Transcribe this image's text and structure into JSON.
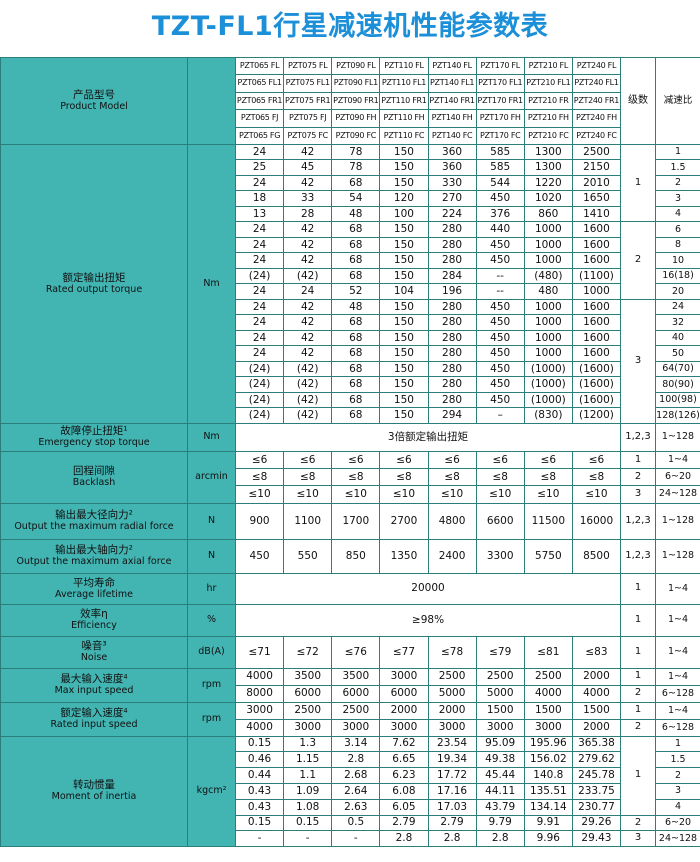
{
  "title": "TZT-FL1行星减速机性能参数表",
  "header": {
    "label_cn": "产品型号",
    "label_en": "Product Model",
    "stage": "级数",
    "ratio": "减速比",
    "models": [
      [
        "PZT065 FL",
        "PZT075 FL",
        "PZT090 FL",
        "PZT110 FL",
        "PZT140 FL",
        "PZT170 FL",
        "PZT210 FL",
        "PZT240 FL"
      ],
      [
        "PZT065 FL1",
        "PZT075 FL1",
        "PZT090 FL1",
        "PZT110 FL1",
        "PZT140 FL1",
        "PZT170 FL1",
        "PZT210 FL1",
        "PZT240 FL1"
      ],
      [
        "PZT065 FR1",
        "PZT075 FR1",
        "PZT090 FR1",
        "PZT110 FR1",
        "PZT140 FR1",
        "PZT170 FR1",
        "PZT210 FR",
        "PZT240 FR1"
      ],
      [
        "PZT065 FJ",
        "PZT075 FJ",
        "PZT090 FH",
        "PZT110 FH",
        "PZT140 FH",
        "PZT170 FH",
        "PZT210 FH",
        "PZT240 FH"
      ],
      [
        "PZT065 FG",
        "PZT075 FC",
        "PZT090 FC",
        "PZT110 FC",
        "PZT140 FC",
        "PZT170 FC",
        "PZT210 FC",
        "PZT240 FC"
      ]
    ]
  },
  "sections": [
    {
      "label_cn": "额定输出扭矩",
      "label_en": "Rated output torque",
      "unit": "Nm",
      "rows": [
        {
          "values": [
            "24",
            "42",
            "78",
            "150",
            "360",
            "585",
            "1300",
            "2500"
          ],
          "stage": "1",
          "ratio": "1"
        },
        {
          "values": [
            "25",
            "45",
            "78",
            "150",
            "360",
            "585",
            "1300",
            "2150"
          ],
          "stage": null,
          "ratio": "1.5"
        },
        {
          "values": [
            "24",
            "42",
            "68",
            "150",
            "330",
            "544",
            "1220",
            "2010"
          ],
          "stage": null,
          "ratio": "2"
        },
        {
          "values": [
            "18",
            "33",
            "54",
            "120",
            "270",
            "450",
            "1020",
            "1650"
          ],
          "stage": null,
          "ratio": "3"
        },
        {
          "values": [
            "13",
            "28",
            "48",
            "100",
            "224",
            "376",
            "860",
            "1410"
          ],
          "stage": null,
          "ratio": "4"
        },
        {
          "values": [
            "24",
            "42",
            "68",
            "150",
            "280",
            "440",
            "1000",
            "1600"
          ],
          "stage": "2",
          "ratio": "6"
        },
        {
          "values": [
            "24",
            "42",
            "68",
            "150",
            "280",
            "450",
            "1000",
            "1600"
          ],
          "stage": null,
          "ratio": "8"
        },
        {
          "values": [
            "24",
            "42",
            "68",
            "150",
            "280",
            "450",
            "1000",
            "1600"
          ],
          "stage": null,
          "ratio": "10"
        },
        {
          "values": [
            "(24)",
            "(42)",
            "68",
            "150",
            "284",
            "--",
            "(480)",
            "(1100)"
          ],
          "stage": null,
          "ratio": "16(18)"
        },
        {
          "values": [
            "24",
            "24",
            "52",
            "104",
            "196",
            "--",
            "480",
            "1000"
          ],
          "stage": null,
          "ratio": "20"
        },
        {
          "values": [
            "24",
            "42",
            "48",
            "150",
            "280",
            "450",
            "1000",
            "1600"
          ],
          "stage": "3",
          "ratio": "24"
        },
        {
          "values": [
            "24",
            "42",
            "68",
            "150",
            "280",
            "450",
            "1000",
            "1600"
          ],
          "stage": null,
          "ratio": "32"
        },
        {
          "values": [
            "24",
            "42",
            "68",
            "150",
            "280",
            "450",
            "1000",
            "1600"
          ],
          "stage": null,
          "ratio": "40"
        },
        {
          "values": [
            "24",
            "42",
            "68",
            "150",
            "280",
            "450",
            "1000",
            "1600"
          ],
          "stage": null,
          "ratio": "50"
        },
        {
          "values": [
            "(24)",
            "(42)",
            "68",
            "150",
            "280",
            "450",
            "(1000)",
            "(1600)"
          ],
          "stage": null,
          "ratio": "64(70)"
        },
        {
          "values": [
            "(24)",
            "(42)",
            "68",
            "150",
            "280",
            "450",
            "(1000)",
            "(1600)"
          ],
          "stage": null,
          "ratio": "80(90)"
        },
        {
          "values": [
            "(24)",
            "(42)",
            "68",
            "150",
            "280",
            "450",
            "(1000)",
            "(1600)"
          ],
          "stage": null,
          "ratio": "100(98)"
        },
        {
          "values": [
            "(24)",
            "(42)",
            "68",
            "150",
            "294",
            "–",
            "(830)",
            "(1200)"
          ],
          "stage": null,
          "ratio": "128(126)"
        }
      ]
    },
    {
      "label_cn": "故障停止扭矩¹",
      "label_en": "Emergency stop torque",
      "unit": "Nm",
      "rows": [
        {
          "merged": "3倍额定输出扭矩",
          "stage": "1,2,3",
          "ratio": "1~128"
        }
      ]
    },
    {
      "label_cn": "回程间隙",
      "label_en": "Backlash",
      "unit": "arcmin",
      "rows": [
        {
          "values": [
            "≤6",
            "≤6",
            "≤6",
            "≤6",
            "≤6",
            "≤6",
            "≤6",
            "≤6"
          ],
          "stage": "1",
          "ratio": "1~4"
        },
        {
          "values": [
            "≤8",
            "≤8",
            "≤8",
            "≤8",
            "≤8",
            "≤8",
            "≤8",
            "≤8"
          ],
          "stage": "2",
          "ratio": "6~20"
        },
        {
          "values": [
            "≤10",
            "≤10",
            "≤10",
            "≤10",
            "≤10",
            "≤10",
            "≤10",
            "≤10"
          ],
          "stage": "3",
          "ratio": "24~128"
        }
      ]
    },
    {
      "label_cn": "输出最大径向力²",
      "label_en": "Output the maximum radial force",
      "unit": "N",
      "rows": [
        {
          "values": [
            "900",
            "1100",
            "1700",
            "2700",
            "4800",
            "6600",
            "11500",
            "16000"
          ],
          "stage": "1,2,3",
          "ratio": "1~128"
        }
      ]
    },
    {
      "label_cn": "输出最大轴向力²",
      "label_en": "Output the maximum axial force",
      "unit": "N",
      "rows": [
        {
          "values": [
            "450",
            "550",
            "850",
            "1350",
            "2400",
            "3300",
            "5750",
            "8500"
          ],
          "stage": "1,2,3",
          "ratio": "1~128"
        }
      ]
    },
    {
      "label_cn": "平均寿命",
      "label_en": "Average lifetime",
      "unit": "hr",
      "rows": [
        {
          "merged": "20000",
          "stage": "1",
          "ratio": "1~4"
        }
      ]
    },
    {
      "label_cn": "效率η",
      "label_en": "Efficiency",
      "unit": "%",
      "rows": [
        {
          "merged": "≥98%",
          "stage": "1",
          "ratio": "1~4"
        }
      ]
    },
    {
      "label_cn": "噪音³",
      "label_en": "Noise",
      "unit": "dB(A)",
      "rows": [
        {
          "values": [
            "≤71",
            "≤72",
            "≤76",
            "≤77",
            "≤78",
            "≤79",
            "≤81",
            "≤83"
          ],
          "stage": "1",
          "ratio": "1~4"
        }
      ]
    },
    {
      "label_cn": "最大输入速度⁴",
      "label_en": "Max input speed",
      "unit": "rpm",
      "rows": [
        {
          "values": [
            "4000",
            "3500",
            "3500",
            "3000",
            "2500",
            "2500",
            "2500",
            "2000"
          ],
          "stage": "1",
          "ratio": "1~4"
        },
        {
          "values": [
            "8000",
            "6000",
            "6000",
            "6000",
            "5000",
            "5000",
            "4000",
            "4000"
          ],
          "stage": "2",
          "ratio": "6~128"
        }
      ]
    },
    {
      "label_cn": "额定输入速度⁴",
      "label_en": "Rated input speed",
      "unit": "rpm",
      "rows": [
        {
          "values": [
            "3000",
            "2500",
            "2500",
            "2000",
            "2000",
            "1500",
            "1500",
            "1500"
          ],
          "stage": "1",
          "ratio": "1~4"
        },
        {
          "values": [
            "4000",
            "3000",
            "3000",
            "3000",
            "3000",
            "3000",
            "3000",
            "2000"
          ],
          "stage": "2",
          "ratio": "6~128"
        }
      ]
    },
    {
      "label_cn": "转动惯量",
      "label_en": "Moment of inertia",
      "unit": "kgcm²",
      "rows": [
        {
          "values": [
            "0.15",
            "1.3",
            "3.14",
            "7.62",
            "23.54",
            "95.09",
            "195.96",
            "365.38"
          ],
          "stage": "1",
          "ratio": "1"
        },
        {
          "values": [
            "0.46",
            "1.15",
            "2.8",
            "6.65",
            "19.34",
            "49.38",
            "156.02",
            "279.62"
          ],
          "stage": null,
          "ratio": "1.5"
        },
        {
          "values": [
            "0.44",
            "1.1",
            "2.68",
            "6.23",
            "17.72",
            "45.44",
            "140.8",
            "245.78"
          ],
          "stage": null,
          "ratio": "2"
        },
        {
          "values": [
            "0.43",
            "1.09",
            "2.64",
            "6.08",
            "17.16",
            "44.11",
            "135.51",
            "233.75"
          ],
          "stage": null,
          "ratio": "3"
        },
        {
          "values": [
            "0.43",
            "1.08",
            "2.63",
            "6.05",
            "17.03",
            "43.79",
            "134.14",
            "230.77"
          ],
          "stage": null,
          "ratio": "4"
        },
        {
          "values": [
            "0.15",
            "0.15",
            "0.5",
            "2.79",
            "2.79",
            "9.79",
            "9.91",
            "29.26"
          ],
          "stage": "2",
          "ratio": "6~20"
        },
        {
          "values": [
            "-",
            "-",
            "-",
            "2.8",
            "2.8",
            "2.8",
            "9.96",
            "29.43"
          ],
          "stage": "3",
          "ratio": "24~128"
        }
      ]
    }
  ]
}
